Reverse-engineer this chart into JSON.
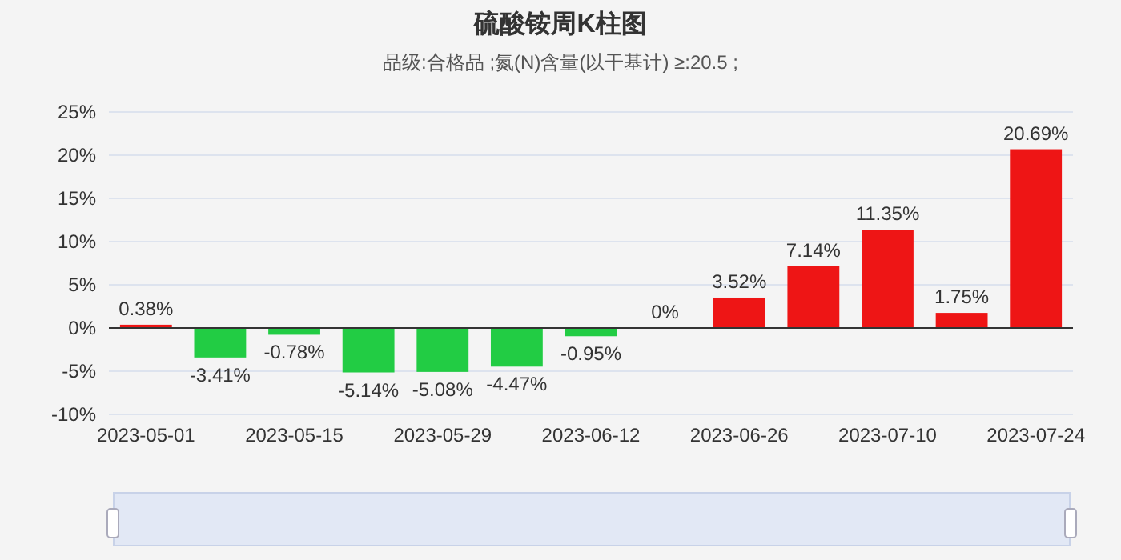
{
  "chart_data": {
    "type": "bar",
    "title": "硫酸铵周K柱图",
    "subtitle": "品级:合格品 ;氮(N)含量(以干基计) ≥:20.5 ;",
    "categories": [
      "2023-05-01",
      null,
      "2023-05-15",
      null,
      "2023-05-29",
      null,
      "2023-06-12",
      null,
      "2023-06-26",
      null,
      "2023-07-10",
      null,
      "2023-07-24"
    ],
    "values": [
      0.38,
      -3.41,
      -0.78,
      -5.14,
      -5.08,
      -4.47,
      -0.95,
      0,
      3.52,
      7.14,
      11.35,
      1.75,
      20.69
    ],
    "colors": [
      "#ee1515",
      "#22cc44",
      "#22cc44",
      "#22cc44",
      "#22cc44",
      "#22cc44",
      "#22cc44",
      "#ee1515",
      "#ee1515",
      "#ee1515",
      "#ee1515",
      "#ee1515",
      "#ee1515"
    ],
    "value_labels": [
      "0.38%",
      "-3.41%",
      "-0.78%",
      "-5.14%",
      "-5.08%",
      "-4.47%",
      "-0.95%",
      "0%",
      "3.52%",
      "7.14%",
      "11.35%",
      "1.75%",
      "20.69%"
    ],
    "ylim": [
      -10,
      25
    ],
    "yticks": [
      {
        "value": -10,
        "label": "-10%"
      },
      {
        "value": -5,
        "label": "-5%"
      },
      {
        "value": 0,
        "label": "0%"
      },
      {
        "value": 5,
        "label": "5%"
      },
      {
        "value": 10,
        "label": "10%"
      },
      {
        "value": 15,
        "label": "15%"
      },
      {
        "value": 20,
        "label": "20%"
      },
      {
        "value": 25,
        "label": "25%"
      }
    ],
    "grid": "y"
  }
}
